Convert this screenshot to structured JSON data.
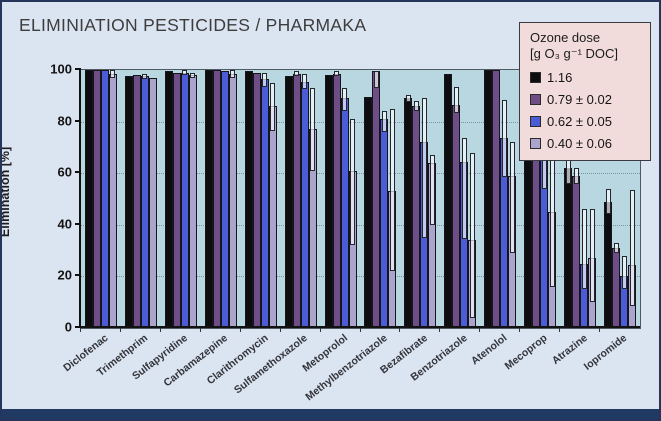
{
  "page": {
    "title": "ELIMINIATION PESTICIDES / PHARMAKA"
  },
  "chart_data": {
    "type": "bar",
    "title": "ELIMINIATION PESTICIDES / PHARMAKA",
    "xlabel": "",
    "ylabel": "Elimination [%]",
    "ylim": [
      0,
      100
    ],
    "yticks": [
      0,
      20,
      40,
      60,
      80,
      100
    ],
    "grid": "horizontal dotted lines at 20, 40, 60, 80",
    "error_bars": true,
    "legend": {
      "title_line1": "Ozone dose",
      "title_line2": "[g O₃ g⁻¹ DOC]",
      "position": "top-right"
    },
    "categories": [
      "Diclofenac",
      "Trimethprim",
      "Sulfapyridine",
      "Carbamazepine",
      "Clarithromycin",
      "Sulfamethoxazole",
      "Metoprolol",
      "Methylbenzotriazole",
      "Bezafibrate",
      "Benzotriazole",
      "Atenolol",
      "Mecoprop",
      "Atrazine",
      "Iopromide"
    ],
    "series": [
      {
        "name": "1.16",
        "color": "#0d0d0f",
        "values": [
          100,
          97.5,
          99.5,
          100,
          99.5,
          97.5,
          98,
          89.5,
          89,
          98.5,
          100,
          96,
          62,
          49
        ],
        "err_up": [
          0,
          0.5,
          0,
          0,
          0,
          0.5,
          0.5,
          0,
          1.5,
          0,
          0,
          0,
          6,
          5
        ],
        "err_down": [
          0,
          0.5,
          0,
          0,
          0,
          0.5,
          0.5,
          0,
          1.5,
          0,
          0,
          0,
          6,
          5
        ]
      },
      {
        "name": "0.79 ± 0.02",
        "color": "#6f4e87",
        "values": [
          100,
          98,
          99,
          100,
          99,
          98.5,
          98.5,
          99.5,
          86,
          86.5,
          100,
          86,
          59,
          31
        ],
        "err_up": [
          0,
          0.5,
          0.5,
          0,
          0.5,
          1,
          1,
          0,
          2,
          7,
          0,
          8,
          3,
          2
        ],
        "err_down": [
          0,
          0.5,
          0.5,
          0,
          0.5,
          1,
          1,
          6.5,
          2,
          3,
          0,
          8,
          3,
          2
        ]
      },
      {
        "name": "0.62 ± 0.05",
        "color": "#4b5cd6",
        "values": [
          100,
          97.5,
          99,
          99.5,
          96.5,
          95.5,
          89,
          81,
          72,
          64.5,
          73.5,
          68,
          25,
          20
        ],
        "err_up": [
          0,
          1,
          1,
          0.5,
          2.5,
          3,
          4,
          3,
          17,
          9,
          15,
          13,
          21,
          8
        ],
        "err_down": [
          0,
          1,
          1,
          0.5,
          3,
          3,
          5,
          5,
          37,
          30,
          15,
          14,
          10,
          5
        ]
      },
      {
        "name": "0.40 ± 0.06",
        "color": "#aba5cd",
        "values": [
          98.5,
          97,
          98,
          98.5,
          86,
          77,
          61,
          53,
          64,
          34,
          59,
          45,
          27,
          24.5
        ],
        "err_up": [
          1.5,
          0.5,
          1,
          1.5,
          9,
          16,
          20,
          32,
          3,
          34,
          13,
          27,
          19,
          29
        ],
        "err_down": [
          1.5,
          0.5,
          1,
          1.5,
          9.5,
          16,
          29,
          31,
          24,
          30,
          30,
          29,
          17,
          16
        ]
      }
    ]
  },
  "colors": {
    "page_background": "#dbe4f1",
    "plot_background": "#b9d7e1",
    "frame": "#26365a",
    "footer_bar": "#203a64",
    "legend_background": "#f2dcdb",
    "grid": "#7d93a0",
    "title_text": "#3d3d3d",
    "axis_text": "#141414"
  }
}
